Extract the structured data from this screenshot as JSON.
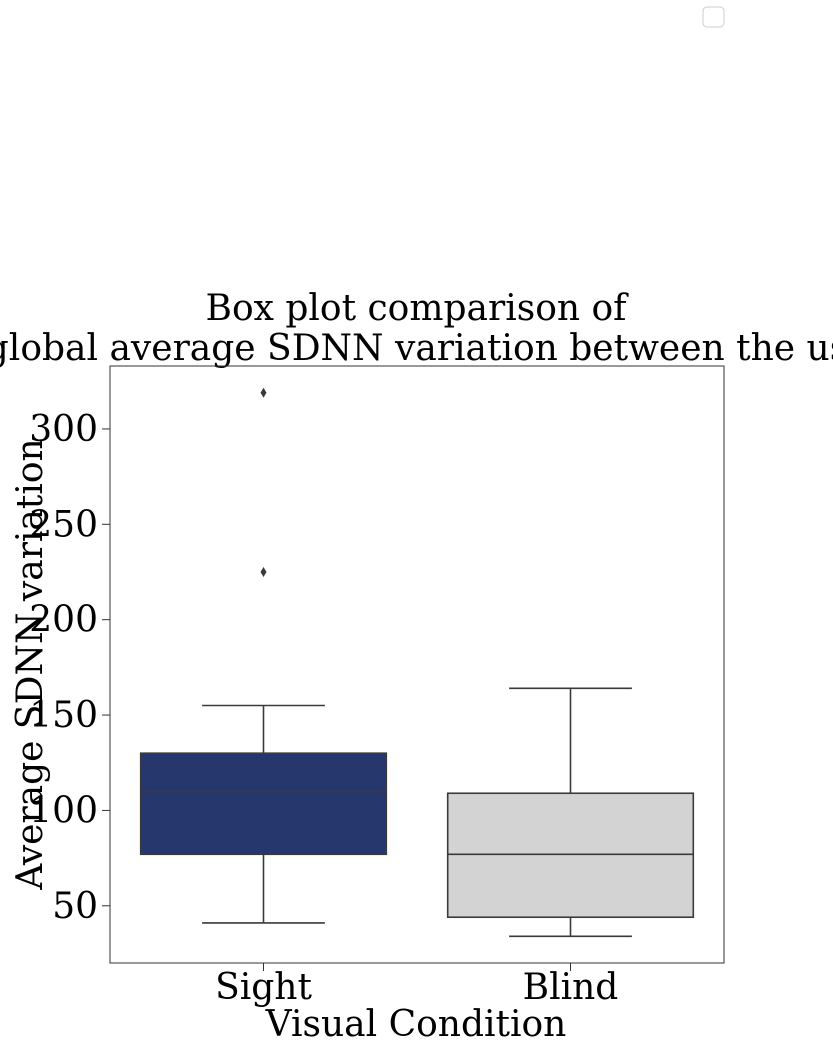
{
  "chart_data": {
    "type": "box",
    "title_line1": "Box plot comparison of",
    "title_line2": "the global average SDNN variation between the users.",
    "xlabel": "Visual Condition",
    "ylabel": "Average SDNN variation",
    "ylim": [
      20,
      333
    ],
    "yticks": [
      50,
      100,
      150,
      200,
      250,
      300
    ],
    "ytick_labels": [
      "50",
      "100",
      "150",
      "200",
      "250",
      "300"
    ],
    "categories": [
      "Sight",
      "Blind"
    ],
    "boxes": [
      {
        "category": "Sight",
        "whisker_low": 41,
        "q1": 77,
        "median": 110,
        "q3": 130,
        "whisker_high": 155,
        "outliers": [
          225,
          319
        ],
        "color": "#26376e"
      },
      {
        "category": "Blind",
        "whisker_low": 34,
        "q1": 44,
        "median": 77,
        "q3": 109,
        "whisker_high": 164,
        "outliers": [],
        "color": "#d3d3d3"
      }
    ],
    "legend": {
      "position": "top-right",
      "entries": []
    },
    "grid": false
  }
}
